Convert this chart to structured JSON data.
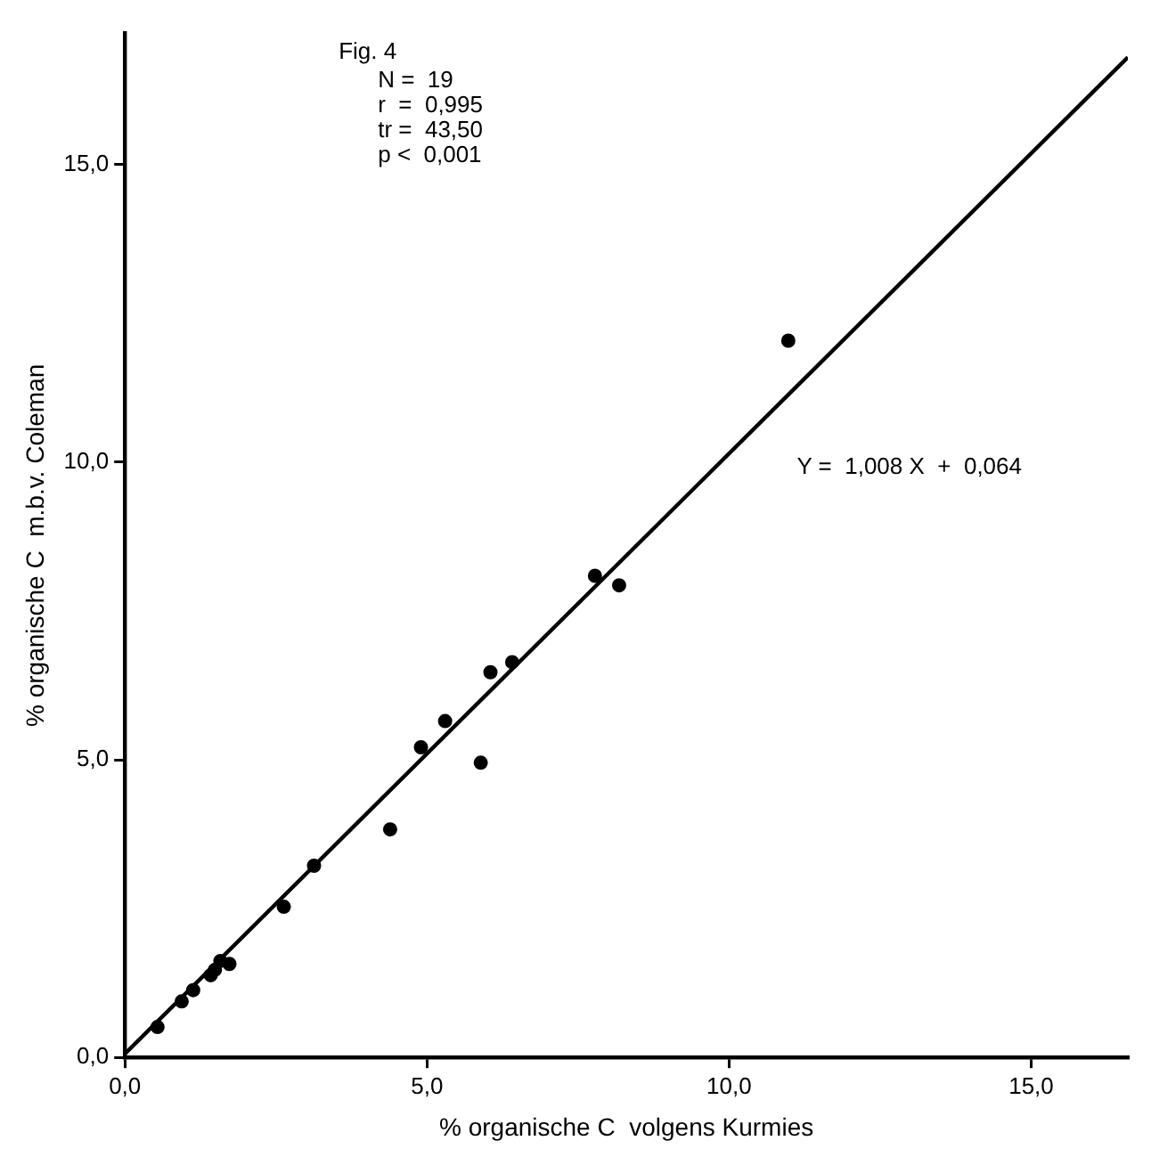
{
  "chart_data": {
    "type": "scatter",
    "xlabel": "% organische C  volgens Kurmies",
    "ylabel": "% organische C  m.b.v. Coleman",
    "xlim": [
      0,
      16.6
    ],
    "ylim": [
      0,
      17.2
    ],
    "xticks": [
      {
        "value": 0,
        "label": "0,0"
      },
      {
        "value": 5,
        "label": "5,0"
      },
      {
        "value": 10,
        "label": "10,0"
      },
      {
        "value": 15,
        "label": "15,0"
      }
    ],
    "yticks": [
      {
        "value": 0,
        "label": "0,0"
      },
      {
        "value": 5,
        "label": "5,0"
      },
      {
        "value": 10,
        "label": "10,0"
      },
      {
        "value": 15,
        "label": "15,0"
      }
    ],
    "grid": false,
    "legend": false,
    "marker": "circle",
    "annotations": [
      "Fig. 4",
      "N =  19",
      "r  =  0,995",
      "tr =  43,50",
      "p <  0,001",
      "Y =  1,008 X  +  0,064"
    ],
    "series": [
      {
        "color": "#000000",
        "x": [
          0.54,
          0.94,
          1.13,
          1.42,
          1.49,
          1.58,
          1.73,
          2.63,
          3.13,
          4.39,
          4.9,
          5.3,
          5.89,
          6.05,
          6.41,
          7.78,
          8.18,
          10.98
        ],
        "values": [
          0.51,
          0.94,
          1.13,
          1.38,
          1.47,
          1.62,
          1.57,
          2.53,
          3.22,
          3.83,
          5.21,
          5.65,
          4.95,
          6.47,
          6.64,
          8.09,
          7.93,
          12.04
        ]
      },
      {
        "type": "line",
        "color": "#000000",
        "marker": "none",
        "x": [
          0,
          16.6
        ],
        "values": [
          0.06,
          16.8
        ]
      }
    ]
  }
}
